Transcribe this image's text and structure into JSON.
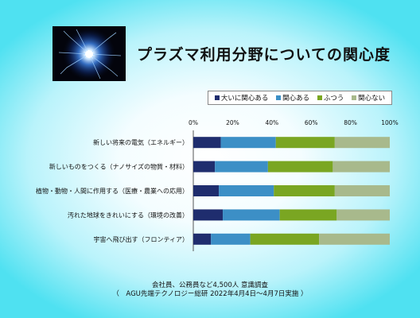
{
  "title": "プラズマ利用分野についての関心度",
  "legend": [
    {
      "label": "大いに関心ある",
      "color": "#1f2d6e"
    },
    {
      "label": "関心ある",
      "color": "#3c8fc6"
    },
    {
      "label": "ふつう",
      "color": "#7aa622"
    },
    {
      "label": "関心ない",
      "color": "#a8b98c"
    }
  ],
  "chart_data": {
    "type": "bar",
    "orientation": "horizontal",
    "stacked": "percent",
    "categories": [
      "新しい将来の電気（エネルギー）",
      "新しいものをつくる（ナノサイズの物質・材料）",
      "植物・動物・人間に作用する（医療・農業への応用）",
      "汚れた地球をきれいにする（環境の改善）",
      "宇宙へ飛び出す（フロンティア）"
    ],
    "series": [
      {
        "name": "大いに関心ある",
        "values": [
          14,
          11,
          13,
          15,
          9
        ]
      },
      {
        "name": "関心ある",
        "values": [
          28,
          27,
          28,
          29,
          20
        ]
      },
      {
        "name": "ふつう",
        "values": [
          30,
          33,
          31,
          29,
          35
        ]
      },
      {
        "name": "関心ない",
        "values": [
          28,
          29,
          28,
          27,
          36
        ]
      }
    ],
    "colors": [
      "#1f2d6e",
      "#3c8fc6",
      "#7aa622",
      "#a8b98c"
    ],
    "xticks": [
      "0%",
      "20%",
      "40%",
      "60%",
      "80%",
      "100%"
    ],
    "xlim": [
      0,
      100
    ],
    "legend_position": "top-right"
  },
  "footer": {
    "line1": "会社員、公務員など4,500人 意識調査",
    "line2": "（　AGU先端テクノロジー総研 2022年4月4日～4月7日実施 ）"
  }
}
